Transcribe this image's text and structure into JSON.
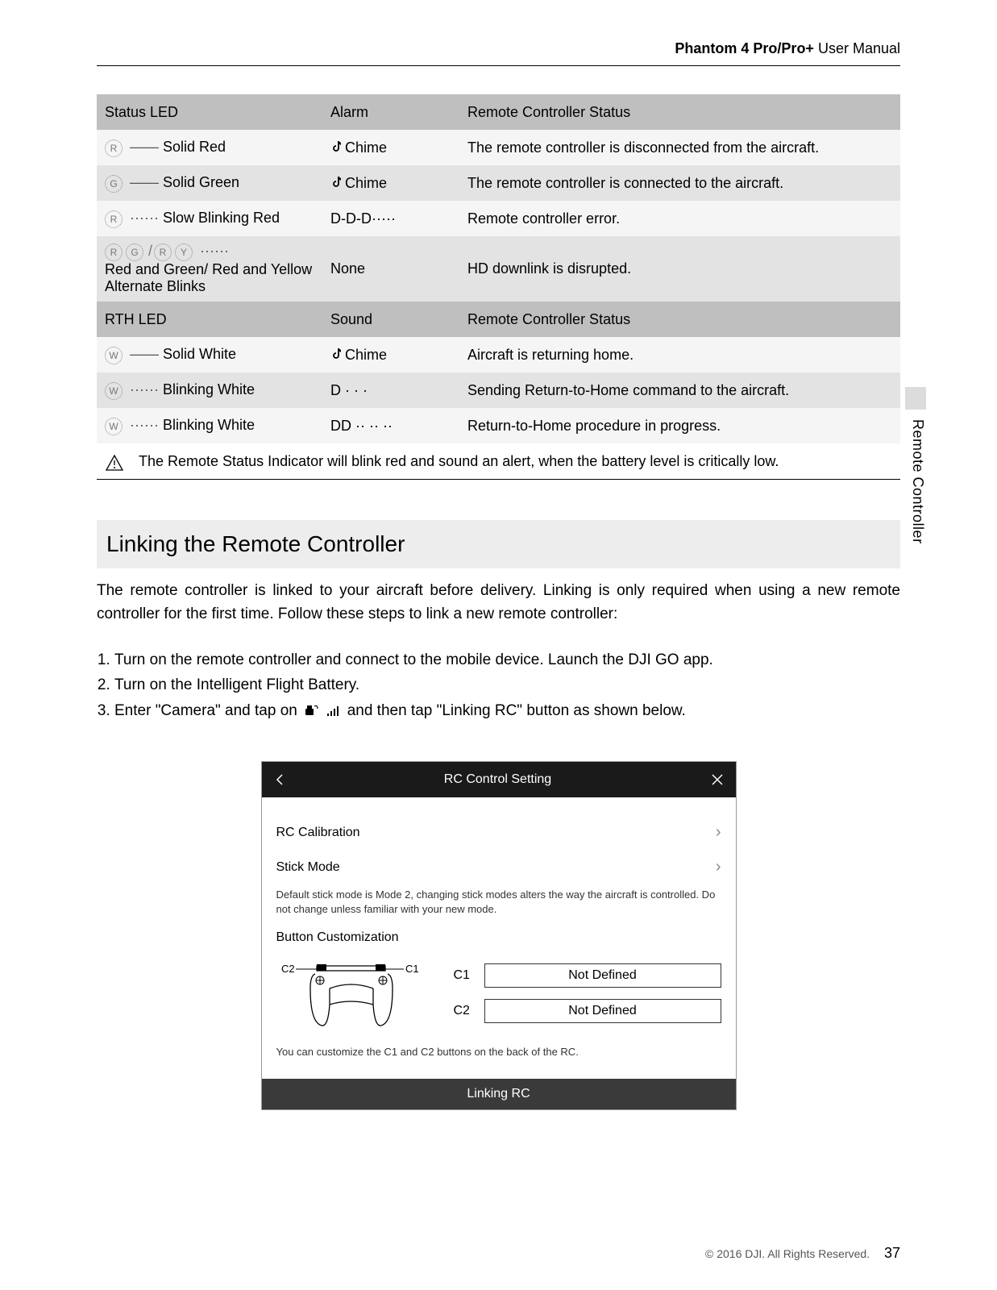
{
  "header": {
    "product": "Phantom 4 Pro/Pro+",
    "suffix": " User Manual"
  },
  "side_tab_label": "Remote Controller",
  "table1": {
    "headers": [
      "Status LED",
      "Alarm",
      "Remote Controller Status"
    ],
    "rows": [
      {
        "leds": [
          {
            "t": "R"
          }
        ],
        "line": "——",
        "pattern": "Solid Red",
        "alarm_icon": true,
        "alarm": "Chime",
        "status": "The remote controller is disconnected from the aircraft."
      },
      {
        "leds": [
          {
            "t": "G"
          }
        ],
        "line": "——",
        "pattern": "Solid Green",
        "alarm_icon": true,
        "alarm": "Chime",
        "status": "The remote controller is connected to the aircraft."
      },
      {
        "leds": [
          {
            "t": "R"
          }
        ],
        "line": "······",
        "pattern": "Slow Blinking Red",
        "alarm_icon": false,
        "alarm": "D-D-D·····",
        "status": "Remote controller error."
      },
      {
        "leds": [
          {
            "t": "R"
          },
          {
            "t": "G"
          },
          {
            "sep": "/"
          },
          {
            "t": "R"
          },
          {
            "t": "Y"
          }
        ],
        "line": "······",
        "pattern": "Red and Green/ Red and Yellow Alternate Blinks",
        "alarm_icon": false,
        "alarm": "None",
        "status": "HD downlink is disrupted."
      }
    ]
  },
  "table2": {
    "headers": [
      "RTH LED",
      "Sound",
      "Remote Controller Status"
    ],
    "rows": [
      {
        "leds": [
          {
            "t": "W"
          }
        ],
        "line": "——",
        "pattern": "Solid White",
        "alarm_icon": true,
        "alarm": "Chime",
        "status": "Aircraft is returning home."
      },
      {
        "leds": [
          {
            "t": "W"
          }
        ],
        "line": "······",
        "pattern": "Blinking White",
        "alarm_icon": false,
        "alarm": "D · · ·",
        "status": "Sending Return-to-Home command to the aircraft."
      },
      {
        "leds": [
          {
            "t": "W"
          }
        ],
        "line": "······",
        "pattern": "Blinking White",
        "alarm_icon": false,
        "alarm": "DD ·· ·· ··",
        "status": "Return-to-Home procedure in progress."
      }
    ]
  },
  "note": "The Remote Status Indicator will blink red and sound an alert, when the battery level is critically low.",
  "section": {
    "title": "Linking the Remote Controller",
    "intro": "The remote controller is linked to your aircraft before delivery. Linking is only required when using a new remote controller for the first time. Follow these steps to link a new remote controller:",
    "steps": [
      "Turn on the remote controller and connect to the mobile device. Launch the DJI GO app.",
      "Turn on the Intelligent Flight Battery.",
      {
        "pre": "Enter \"Camera\" and tap on ",
        "post": " and then tap \"Linking RC\"  button as shown below."
      }
    ]
  },
  "rc_panel": {
    "title": "RC Control Setting",
    "items": {
      "calibration": "RC Calibration",
      "stick_mode": "Stick Mode",
      "stick_hint": "Default stick mode is Mode 2, changing stick modes alters the way the aircraft is controlled. Do not change unless familiar with your new mode.",
      "button_custom": "Button Customization",
      "c1": "C1",
      "c2": "C2",
      "not_defined": "Not Defined",
      "custom_hint": "You can customize the C1 and C2 buttons on the back of the RC.",
      "linking": "Linking RC"
    }
  },
  "footer": {
    "copyright": "© 2016 DJI. All Rights Reserved.",
    "page": "37"
  }
}
